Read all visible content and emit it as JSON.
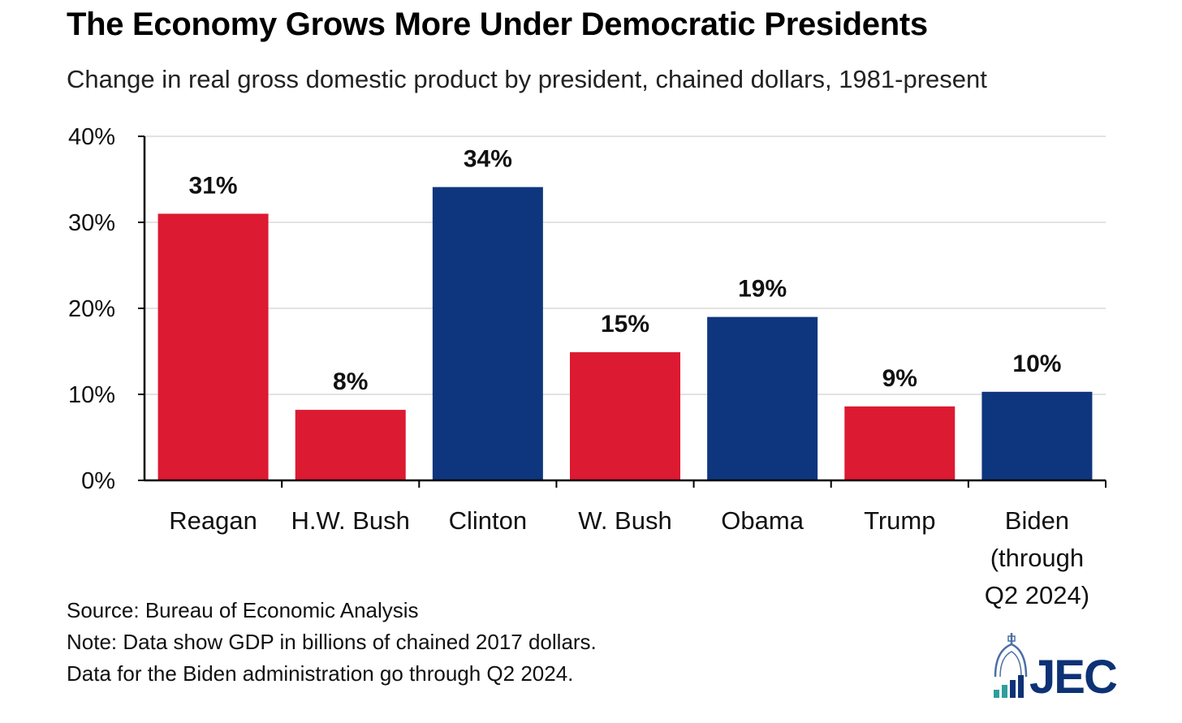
{
  "title": "The Economy Grows More Under Democratic Presidents",
  "subtitle": "Change in real gross domestic product by president, chained dollars, 1981-present",
  "notes": {
    "source": "Source: Bureau of Economic Analysis",
    "note1": "Note: Data show GDP in billions of chained 2017 dollars.",
    "note2": "Data for the Biden administration go through Q2 2024."
  },
  "logo": {
    "text": "JEC",
    "icon": "capitol-dome-bar-icon"
  },
  "colors": {
    "republican": "#dc1a32",
    "democratic": "#0e367e",
    "grid": "#d9d9d9",
    "axis": "#000000"
  },
  "chart_data": {
    "type": "bar",
    "title": "The Economy Grows More Under Democratic Presidents",
    "subtitle": "Change in real gross domestic product by president, chained dollars, 1981-present",
    "categories": [
      [
        "Reagan"
      ],
      [
        "H.W. Bush"
      ],
      [
        "Clinton"
      ],
      [
        "W. Bush"
      ],
      [
        "Obama"
      ],
      [
        "Trump"
      ],
      [
        "Biden",
        "(through",
        "Q2 2024)"
      ]
    ],
    "values": [
      31,
      8.2,
      34.1,
      14.9,
      19,
      8.6,
      10.3
    ],
    "data_labels": [
      "31%",
      "8%",
      "34%",
      "15%",
      "19%",
      "9%",
      "10%"
    ],
    "party": [
      "republican",
      "republican",
      "democratic",
      "republican",
      "democratic",
      "republican",
      "democratic"
    ],
    "ylim": [
      0,
      40
    ],
    "yticks": [
      0,
      10,
      20,
      30,
      40
    ],
    "ytick_labels": [
      "0%",
      "10%",
      "20%",
      "30%",
      "40%"
    ],
    "grid": true,
    "legend": "none"
  }
}
